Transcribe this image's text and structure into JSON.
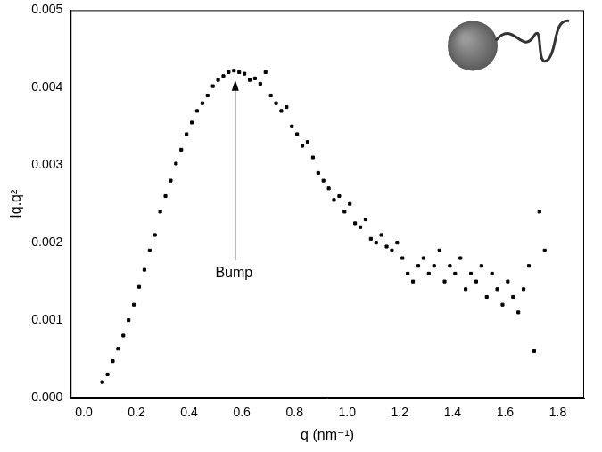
{
  "chart_data": {
    "type": "scatter",
    "x_label": "q (nm⁻¹)",
    "y_label": "Iq.q²",
    "color": "#000000",
    "marker": "square",
    "grid": false,
    "xlim": [
      -0.05,
      1.9
    ],
    "xticks": [
      {
        "value": 0,
        "label": "0.0"
      },
      {
        "value": 0.2,
        "label": "0.2"
      },
      {
        "value": 0.4,
        "label": "0.4"
      },
      {
        "value": 0.6,
        "label": "0.6"
      },
      {
        "value": 0.8,
        "label": "0.8"
      },
      {
        "value": 1,
        "label": "1.0"
      },
      {
        "value": 1.2,
        "label": "1.2"
      },
      {
        "value": 1.4,
        "label": "1.4"
      },
      {
        "value": 1.6,
        "label": "1.6"
      },
      {
        "value": 1.8,
        "label": "1.8"
      }
    ],
    "ylim": [
      0,
      0.005
    ],
    "yticks": [
      {
        "value": 0,
        "label": "0.000"
      },
      {
        "value": 0.001,
        "label": "0.001"
      },
      {
        "value": 0.002,
        "label": "0.002"
      },
      {
        "value": 0.003,
        "label": "0.003"
      },
      {
        "value": 0.004,
        "label": "0.004"
      },
      {
        "value": 0.005,
        "label": "0.005"
      }
    ],
    "annotations": [
      {
        "text": "Bump",
        "x": 0.57,
        "y": 0.0017,
        "arrow_to": [
          0.575,
          0.0041
        ]
      }
    ],
    "x": [
      0.07,
      0.09,
      0.11,
      0.13,
      0.15,
      0.17,
      0.19,
      0.21,
      0.23,
      0.25,
      0.27,
      0.29,
      0.31,
      0.33,
      0.35,
      0.37,
      0.39,
      0.41,
      0.43,
      0.45,
      0.47,
      0.49,
      0.51,
      0.53,
      0.55,
      0.57,
      0.59,
      0.61,
      0.63,
      0.65,
      0.67,
      0.69,
      0.71,
      0.73,
      0.75,
      0.77,
      0.79,
      0.81,
      0.83,
      0.85,
      0.87,
      0.89,
      0.91,
      0.93,
      0.95,
      0.97,
      0.99,
      1.01,
      1.03,
      1.05,
      1.07,
      1.09,
      1.11,
      1.13,
      1.15,
      1.17,
      1.19,
      1.21,
      1.23,
      1.25,
      1.27,
      1.29,
      1.31,
      1.33,
      1.35,
      1.37,
      1.39,
      1.41,
      1.43,
      1.45,
      1.47,
      1.49,
      1.51,
      1.53,
      1.55,
      1.57,
      1.59,
      1.61,
      1.63,
      1.65,
      1.67,
      1.69,
      1.71,
      1.73,
      1.75
    ],
    "values": [
      0.0002,
      0.0003,
      0.00047,
      0.00063,
      0.0008,
      0.001,
      0.0012,
      0.00143,
      0.00165,
      0.0019,
      0.0021,
      0.0024,
      0.0026,
      0.0028,
      0.00302,
      0.0032,
      0.0034,
      0.00355,
      0.0037,
      0.0038,
      0.0039,
      0.00402,
      0.0041,
      0.00415,
      0.0042,
      0.00422,
      0.0042,
      0.00418,
      0.0041,
      0.00412,
      0.00405,
      0.0042,
      0.0039,
      0.0038,
      0.0037,
      0.00375,
      0.0035,
      0.0034,
      0.00325,
      0.0033,
      0.0031,
      0.0029,
      0.0028,
      0.0027,
      0.00255,
      0.0026,
      0.0024,
      0.0025,
      0.00225,
      0.0022,
      0.0023,
      0.00205,
      0.002,
      0.0021,
      0.00195,
      0.0019,
      0.002,
      0.0018,
      0.0016,
      0.0015,
      0.0017,
      0.0018,
      0.0016,
      0.0017,
      0.0019,
      0.0015,
      0.0017,
      0.0016,
      0.0018,
      0.0014,
      0.0016,
      0.0015,
      0.0017,
      0.0013,
      0.0016,
      0.0014,
      0.0012,
      0.0015,
      0.0013,
      0.0011,
      0.0014,
      0.0017,
      0.0006,
      0.0024,
      0.0019
    ]
  }
}
